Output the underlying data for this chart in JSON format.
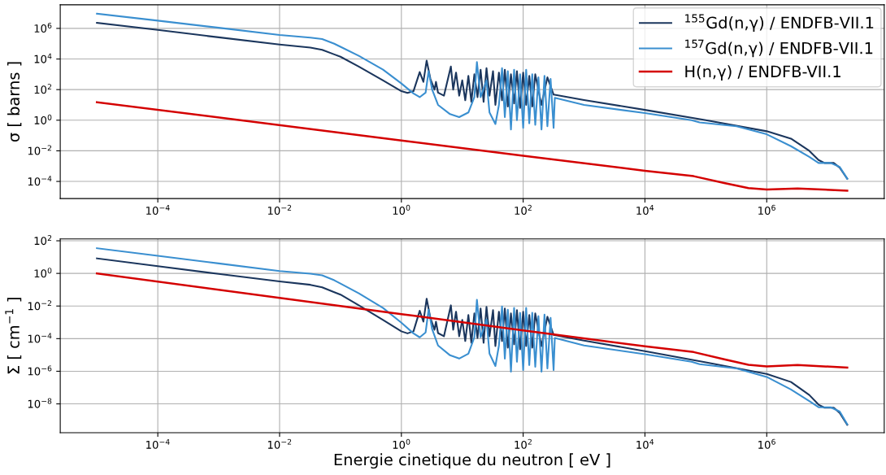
{
  "chart_data": [
    {
      "type": "line",
      "ylabel": "σ [ barns ]",
      "log": "xy",
      "grid": true,
      "legend": "top right",
      "xlim": [
        2.5e-06,
        85000000.0
      ],
      "ylim": [
        7.6e-06,
        35000000.0
      ],
      "xticks": [
        {
          "value": 0.0001,
          "label": "10$^{−4}$"
        },
        {
          "value": 0.01,
          "label": "10$^{−2}$"
        },
        {
          "value": 1,
          "label": "10$^{0}$"
        },
        {
          "value": 100,
          "label": "10$^{2}$"
        },
        {
          "value": 10000,
          "label": "10$^{4}$"
        },
        {
          "value": 1000000,
          "label": "10$^{6}$"
        }
      ],
      "yticks": [
        {
          "value": 0.0001,
          "label": "10$^{−4}$"
        },
        {
          "value": 0.01,
          "label": "10$^{−2}$"
        },
        {
          "value": 1,
          "label": "10$^{0}$"
        },
        {
          "value": 100,
          "label": "10$^{2}$"
        },
        {
          "value": 10000,
          "label": "10$^{4}$"
        },
        {
          "value": 1000000,
          "label": "10$^{6}$"
        }
      ],
      "series": [
        {
          "name": "$^{155}$Gd(n,γ) / ENDFB-VII.1",
          "color": "#1b365d",
          "x": [
            1e-05,
            0.0001,
            0.001,
            0.01,
            0.032,
            0.05,
            0.079,
            0.1,
            0.2,
            0.5,
            1,
            1.26,
            1.58,
            2.0,
            2.3,
            2.6,
            3.0,
            3.5,
            3.7,
            4.0,
            5.0,
            6.5,
            7.1,
            7.9,
            8.9,
            10,
            11.2,
            12.6,
            14.1,
            15.8,
            17.8,
            20,
            22.4,
            25,
            28,
            32,
            35,
            40,
            45,
            50,
            56,
            63,
            71,
            79,
            89,
            100,
            112,
            126,
            141,
            158,
            200,
            250,
            316,
            1000,
            10000.0,
            100000.0,
            1000000.0,
            2500000.0,
            5000000.0,
            7100000.0,
            8900000.0,
            12600000.0,
            15800000.0,
            21000000.0
          ],
          "values": [
            2300000.0,
            790000.0,
            260000.0,
            89000.0,
            56000.0,
            40000.0,
            20000.0,
            14000.0,
            3200.0,
            400,
            79,
            60,
            79,
            1400.0,
            320,
            7900.0,
            500,
            100,
            320,
            63,
            40,
            3200.0,
            100,
            1300.0,
            40,
            400,
            20,
            790,
            16,
            1000,
            32,
            2000,
            16,
            2500,
            40,
            1600,
            10,
            1300,
            20,
            2000,
            7.9,
            1000,
            12.6,
            1600,
            6.3,
            1300,
            10,
            790,
            7.9,
            1000,
            10,
            630,
            47,
            21,
            4.7,
            1.0,
            0.19,
            0.063,
            0.01,
            0.0025,
            0.0016,
            0.0016,
            0.00079,
            0.00015
          ]
        },
        {
          "name": "$^{157}$Gd(n,γ) / ENDFB-VII.1",
          "color": "#3a8fd0",
          "x": [
            1e-05,
            0.0001,
            0.001,
            0.01,
            0.032,
            0.05,
            0.079,
            0.1,
            0.2,
            0.5,
            1,
            1.58,
            2.0,
            2.5,
            2.8,
            3.2,
            4.0,
            6.3,
            8.9,
            12.6,
            15.8,
            17.4,
            20,
            25,
            28,
            35,
            40,
            45,
            50,
            56,
            63,
            71,
            79,
            89,
            100,
            112,
            126,
            141,
            158,
            178,
            200,
            224,
            250,
            282,
            316,
            331,
            1000,
            10000.0,
            58000.0,
            79000.0,
            320000.0,
            1000000.0,
            2500000.0,
            5000000.0,
            7100000.0,
            11200000.0,
            15800000.0,
            21000000.0
          ],
          "values": [
            9100000.0,
            3200000.0,
            1100000.0,
            370000.0,
            250000.0,
            200000.0,
            100000.0,
            63000.0,
            16000.0,
            2000.0,
            250,
            56,
            32,
            63,
            1600.0,
            100,
            10,
            2.5,
            1.6,
            3.2,
            32,
            6300.0,
            32,
            400,
            3.2,
            0.56,
            10,
            2500.0,
            1.6,
            1600.0,
            0.25,
            2000.0,
            1.0,
            1000.0,
            0.32,
            2000.0,
            0.63,
            1000.0,
            0.5,
            630,
            0.25,
            790,
            0.4,
            500,
            0.32,
            29,
            10,
            2.9,
            1.0,
            0.71,
            0.4,
            0.12,
            0.02,
            0.004,
            0.0016,
            0.0016,
            0.00089,
            0.00015
          ]
        },
        {
          "name": "H(n,γ) / ENDFB-VII.1",
          "color": "#d40000",
          "x": [
            1e-05,
            1,
            100,
            10000.0,
            63000.0,
            200000.0,
            500000.0,
            1000000.0,
            3200000.0,
            21000000.0
          ],
          "values": [
            15,
            0.047,
            0.0047,
            0.0005,
            0.00022,
            7.9e-05,
            3.7e-05,
            3e-05,
            3.5e-05,
            2.5e-05
          ]
        }
      ]
    },
    {
      "type": "line",
      "xlabel": "Energie cinetique du neutron [ eV ]",
      "ylabel": "Σ [ cm$^{−1}$ ]",
      "log": "xy",
      "grid": true,
      "xlim": [
        2.5e-06,
        85000000.0
      ],
      "ylim": [
        1.7e-10,
        130
      ],
      "xticks": [
        {
          "value": 0.0001,
          "label": "10$^{−4}$"
        },
        {
          "value": 0.01,
          "label": "10$^{−2}$"
        },
        {
          "value": 1,
          "label": "10$^{0}$"
        },
        {
          "value": 100,
          "label": "10$^{2}$"
        },
        {
          "value": 10000,
          "label": "10$^{4}$"
        },
        {
          "value": 1000000,
          "label": "10$^{6}$"
        }
      ],
      "yticks": [
        {
          "value": 1e-08,
          "label": "10$^{−8}$"
        },
        {
          "value": 1e-06,
          "label": "10$^{−6}$"
        },
        {
          "value": 0.0001,
          "label": "10$^{−4}$"
        },
        {
          "value": 0.01,
          "label": "10$^{−2}$"
        },
        {
          "value": 1,
          "label": "10$^{0}$"
        },
        {
          "value": 100,
          "label": "10$^{2}$"
        }
      ],
      "series": [
        {
          "color": "#1b365d",
          "x": [
            1e-05,
            0.0001,
            0.001,
            0.01,
            0.032,
            0.05,
            0.079,
            0.1,
            0.2,
            0.5,
            1,
            1.26,
            1.58,
            2.0,
            2.3,
            2.6,
            3.0,
            3.5,
            3.7,
            4.0,
            5.0,
            6.5,
            7.1,
            7.9,
            8.9,
            10,
            11.2,
            12.6,
            14.1,
            15.8,
            17.8,
            20,
            22.4,
            25,
            28,
            32,
            35,
            40,
            45,
            50,
            56,
            63,
            71,
            79,
            89,
            100,
            112,
            126,
            141,
            158,
            200,
            250,
            316,
            1000,
            10000.0,
            100000.0,
            1000000.0,
            2500000.0,
            5000000.0,
            7100000.0,
            8900000.0,
            12600000.0,
            15800000.0,
            21000000.0
          ],
          "values": [
            8.3,
            2.8,
            0.93,
            0.32,
            0.2,
            0.14,
            0.071,
            0.05,
            0.011,
            0.0014,
            0.00028,
            0.00021,
            0.00028,
            0.0051,
            0.0011,
            0.028,
            0.0018,
            0.00035,
            0.0011,
            0.00022,
            0.00014,
            0.011,
            0.00035,
            0.0045,
            0.00014,
            0.0014,
            7.1e-05,
            0.0028,
            5.6e-05,
            0.0035,
            0.00011,
            0.0071,
            5.6e-05,
            0.0089,
            0.00014,
            0.0056,
            3.5e-05,
            0.0045,
            7.1e-05,
            0.0071,
            2.8e-05,
            0.0035,
            4.5e-05,
            0.0056,
            2.2e-05,
            0.0045,
            3.5e-05,
            0.0028,
            2.8e-05,
            0.0035,
            3.5e-05,
            0.0022,
            0.00017,
            7.6e-05,
            1.7e-05,
            3.5e-06,
            6.8e-07,
            2.2e-07,
            3.5e-08,
            8.9e-09,
            5.8e-09,
            5.8e-09,
            2.8e-09,
            5.2e-10
          ]
        },
        {
          "color": "#3a8fd0",
          "x": [
            1e-05,
            0.0001,
            0.001,
            0.01,
            0.032,
            0.05,
            0.079,
            0.1,
            0.2,
            0.5,
            1,
            1.58,
            2.0,
            2.5,
            2.8,
            3.2,
            4.0,
            6.3,
            8.9,
            12.6,
            15.8,
            17.4,
            20,
            25,
            28,
            35,
            40,
            45,
            50,
            56,
            63,
            71,
            79,
            89,
            100,
            112,
            126,
            141,
            158,
            178,
            200,
            224,
            250,
            282,
            316,
            331,
            1000,
            10000.0,
            58000.0,
            79000.0,
            320000.0,
            1000000.0,
            2500000.0,
            5000000.0,
            7100000.0,
            11200000.0,
            15800000.0,
            21000000.0
          ],
          "values": [
            35,
            12,
            4.1,
            1.4,
            0.95,
            0.76,
            0.38,
            0.24,
            0.06,
            0.0076,
            0.00095,
            0.00021,
            0.00012,
            0.00024,
            0.006,
            0.00038,
            3.8e-05,
            9.5e-06,
            6e-06,
            1.2e-05,
            0.00012,
            0.024,
            0.00012,
            0.0015,
            1.2e-05,
            2.1e-06,
            3.8e-05,
            0.0095,
            6e-06,
            0.006,
            9.5e-07,
            0.0076,
            3.8e-06,
            0.0038,
            1.2e-06,
            0.0076,
            2.4e-06,
            0.0038,
            1.9e-06,
            0.0024,
            9.5e-07,
            0.003,
            1.5e-06,
            0.0019,
            1.2e-06,
            0.00011,
            3.8e-05,
            1.1e-05,
            3.8e-06,
            2.7e-06,
            1.5e-06,
            4.5e-07,
            7.6e-08,
            1.5e-08,
            6.2e-09,
            6.2e-09,
            3.4e-09,
            5.6e-10
          ]
        },
        {
          "color": "#d40000",
          "x": [
            1e-05,
            1,
            100,
            10000.0,
            63000.0,
            200000.0,
            500000.0,
            1000000.0,
            3200000.0,
            21000000.0
          ],
          "values": [
            1.0,
            0.0032,
            0.00032,
            3.4e-05,
            1.5e-05,
            5.4e-06,
            2.5e-06,
            2e-06,
            2.4e-06,
            1.7e-06
          ]
        }
      ]
    }
  ]
}
